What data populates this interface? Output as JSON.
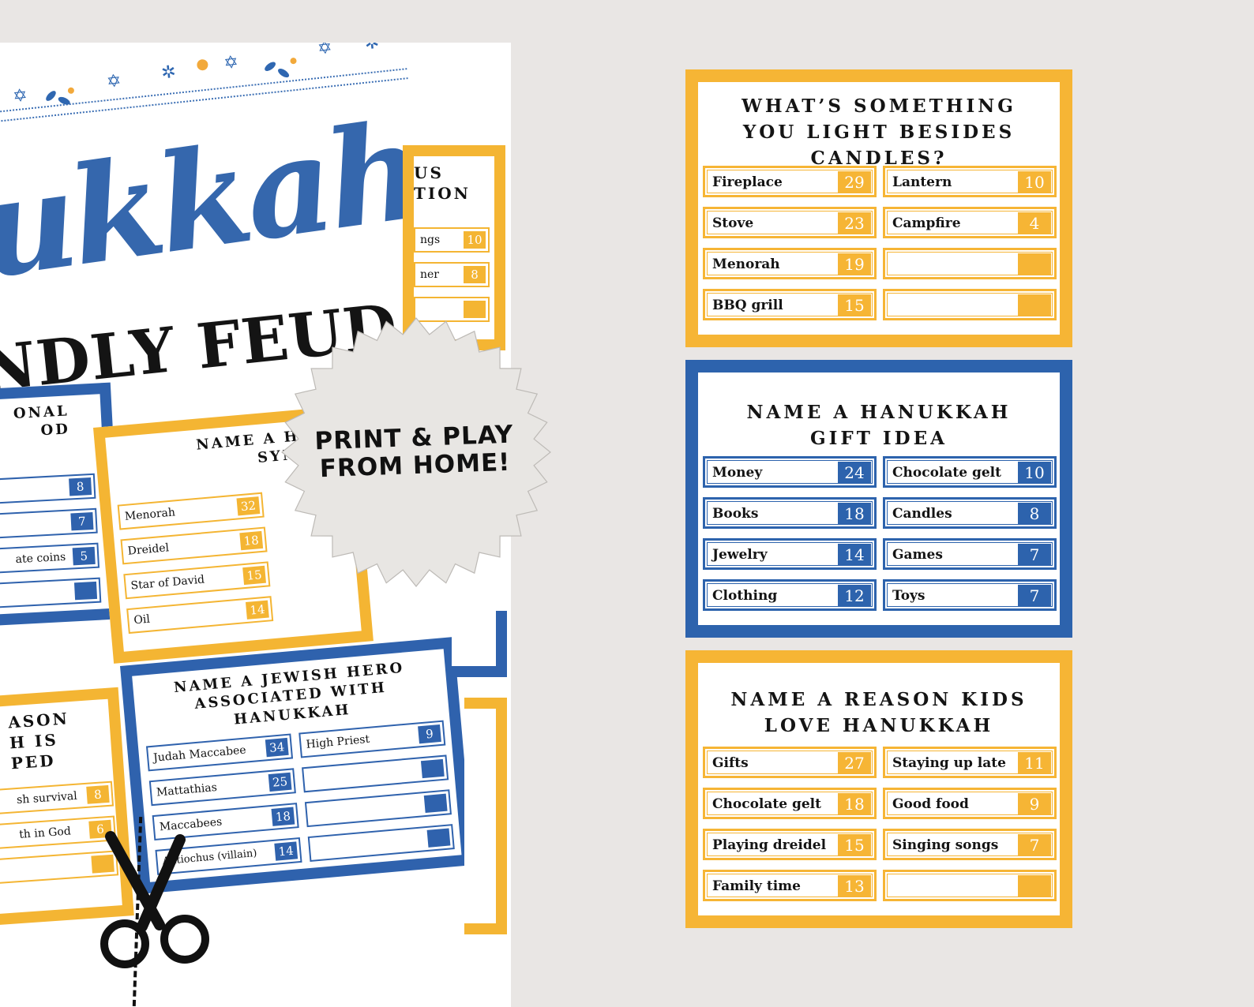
{
  "sheet": {
    "brand_word": "ukkah",
    "subtitle": "NDLY FEUD",
    "burst_text": "PRINT & PLAY FROM HOME!",
    "mini_cards": [
      {
        "title": "US\nTION",
        "rows": [
          {
            "a": "ngs",
            "p": "10"
          },
          {
            "a": "ner",
            "p": "8"
          },
          {
            "a": "",
            "p": ""
          },
          {
            "a": "",
            "p": ""
          }
        ]
      },
      {
        "title": "ONAL\nOD",
        "rows": [
          {
            "a": "",
            "p": "8"
          },
          {
            "a": "",
            "p": "7"
          },
          {
            "a": "ate coins",
            "p": "5"
          },
          {
            "a": "",
            "p": ""
          }
        ]
      },
      {
        "title": "NAME A HAN\nSYMBO",
        "rows": [
          {
            "a": "Menorah",
            "p": "32"
          },
          {
            "a": "Dreidel",
            "p": "18"
          },
          {
            "a": "Star of David",
            "p": "15"
          },
          {
            "a": "Oil",
            "p": "14"
          }
        ]
      },
      {
        "title": "ASON\nH IS\nPED",
        "rows": [
          {
            "a": "sh survival",
            "p": "8"
          },
          {
            "a": "th in God",
            "p": "6"
          },
          {
            "a": "",
            "p": ""
          },
          {
            "a": "",
            "p": ""
          }
        ]
      },
      {
        "title": "NAME A JEWISH HERO\nASSOCIATED WITH\nHANUKKAH",
        "rows": [
          {
            "a": "Judah Maccabee",
            "p": "34"
          },
          {
            "a": "Mattathias",
            "p": "25"
          },
          {
            "a": "Maccabees",
            "p": "18"
          },
          {
            "a": "Antiochus (villain)",
            "p": "14"
          }
        ],
        "rows_right": [
          {
            "a": "High Priest",
            "p": "9"
          },
          {
            "a": "",
            "p": ""
          },
          {
            "a": "",
            "p": ""
          },
          {
            "a": "",
            "p": ""
          }
        ]
      }
    ]
  },
  "cards": [
    {
      "title_lines": [
        "WHAT’S SOMETHING",
        "YOU LIGHT BESIDES",
        "CANDLES?"
      ],
      "color": "#f6b535",
      "left": [
        {
          "a": "Fireplace",
          "p": "29"
        },
        {
          "a": "Stove",
          "p": "23"
        },
        {
          "a": "Menorah",
          "p": "19"
        },
        {
          "a": "BBQ grill",
          "p": "15"
        }
      ],
      "right": [
        {
          "a": "Lantern",
          "p": "10"
        },
        {
          "a": "Campfire",
          "p": "4"
        },
        {
          "a": "",
          "p": ""
        },
        {
          "a": "",
          "p": ""
        }
      ]
    },
    {
      "title_lines": [
        "NAME A HANUKKAH",
        "GIFT IDEA"
      ],
      "color": "#2d63ad",
      "left": [
        {
          "a": "Money",
          "p": "24"
        },
        {
          "a": "Books",
          "p": "18"
        },
        {
          "a": "Jewelry",
          "p": "14"
        },
        {
          "a": "Clothing",
          "p": "12"
        }
      ],
      "right": [
        {
          "a": "Chocolate gelt",
          "p": "10"
        },
        {
          "a": "Candles",
          "p": "8"
        },
        {
          "a": "Games",
          "p": "7"
        },
        {
          "a": "Toys",
          "p": "7"
        }
      ]
    },
    {
      "title_lines": [
        "NAME A REASON KIDS",
        "LOVE HANUKKAH"
      ],
      "color": "#f6b535",
      "left": [
        {
          "a": "Gifts",
          "p": "27"
        },
        {
          "a": "Chocolate gelt",
          "p": "18"
        },
        {
          "a": "Playing dreidel",
          "p": "15"
        },
        {
          "a": "Family time",
          "p": "13"
        }
      ],
      "right": [
        {
          "a": "Staying up late",
          "p": "11"
        },
        {
          "a": "Good food",
          "p": "9"
        },
        {
          "a": "Singing songs",
          "p": "7"
        },
        {
          "a": "",
          "p": ""
        }
      ]
    }
  ]
}
